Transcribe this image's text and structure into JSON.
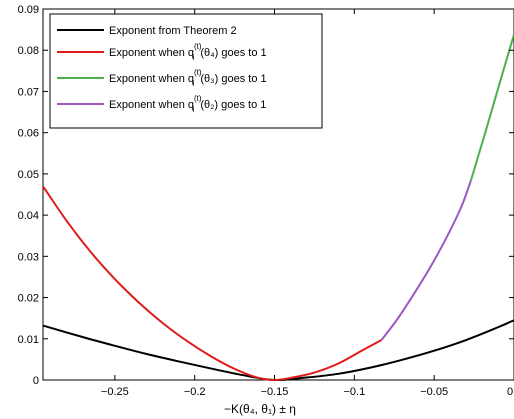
{
  "chart_data": {
    "type": "line",
    "xlabel": "−K(θ₄, θ₁) ± η",
    "xlim": [
      -0.295,
      0
    ],
    "ylim": [
      0,
      0.09
    ],
    "x_ticks": [
      -0.25,
      -0.2,
      -0.15,
      -0.1,
      -0.05,
      0
    ],
    "x_tick_labels": [
      "−0.25",
      "−0.2",
      "−0.15",
      "−0.1",
      "−0.05",
      "0"
    ],
    "y_ticks": [
      0,
      0.01,
      0.02,
      0.03,
      0.04,
      0.05,
      0.06,
      0.07,
      0.08,
      0.09
    ],
    "y_tick_labels": [
      "0",
      "0.01",
      "0.02",
      "0.03",
      "0.04",
      "0.05",
      "0.06",
      "0.07",
      "0.08",
      "0.09"
    ],
    "grid": false,
    "legend_position": "top-left",
    "series": [
      {
        "name": "Exponent from Theorem 2",
        "color": "#000000",
        "x": [
          -0.295,
          -0.27,
          -0.25,
          -0.23,
          -0.21,
          -0.19,
          -0.17,
          -0.15,
          -0.13,
          -0.11,
          -0.09,
          -0.07,
          -0.05,
          -0.03,
          -0.01,
          0
        ],
        "y": [
          0.0132,
          0.0104,
          0.0083,
          0.0063,
          0.0045,
          0.0028,
          0.0012,
          0.0,
          0.0006,
          0.0015,
          0.003,
          0.0049,
          0.0071,
          0.0097,
          0.0128,
          0.0145
        ]
      },
      {
        "name": "Exponent when q_i^(t)(θ₄) goes to 1",
        "color": "#e01b1b",
        "x": [
          -0.295,
          -0.28,
          -0.265,
          -0.25,
          -0.235,
          -0.22,
          -0.205,
          -0.19,
          -0.175,
          -0.16,
          -0.15,
          -0.14,
          -0.125,
          -0.11,
          -0.095,
          -0.083
        ],
        "y": [
          0.047,
          0.0385,
          0.031,
          0.0245,
          0.0188,
          0.0138,
          0.0095,
          0.0058,
          0.0027,
          0.0005,
          0.0,
          0.0005,
          0.0018,
          0.004,
          0.0072,
          0.0097
        ]
      },
      {
        "name": "Exponent when q_i^(t)(θ₃) goes to 1",
        "color": "#4cb04c",
        "x": [
          -0.027,
          -0.018,
          -0.009,
          0
        ],
        "y": [
          0.0484,
          0.06,
          0.072,
          0.0838
        ]
      },
      {
        "name": "Exponent when q_i^(t)(θ₂) goes to 1",
        "color": "#9b59c2",
        "x": [
          -0.083,
          -0.073,
          -0.063,
          -0.053,
          -0.043,
          -0.033,
          -0.027
        ],
        "y": [
          0.0097,
          0.0148,
          0.0207,
          0.027,
          0.034,
          0.042,
          0.0484
        ]
      }
    ]
  },
  "legend": [
    {
      "prefix": "Exponent from Theorem 2",
      "sub": "",
      "theta": "",
      "suffix": "",
      "color": "#000000"
    },
    {
      "prefix": "Exponent when q",
      "sub": "i",
      "sup": "(t)",
      "theta": "(θ₄)",
      "suffix": " goes to 1",
      "color": "#e01b1b"
    },
    {
      "prefix": "Exponent when q",
      "sub": "i",
      "sup": "(t)",
      "theta": "(θ₃)",
      "suffix": " goes to 1",
      "color": "#4cb04c"
    },
    {
      "prefix": "Exponent when q",
      "sub": "i",
      "sup": "(t)",
      "theta": "(θ₂)",
      "suffix": " goes to 1",
      "color": "#9b59c2"
    }
  ]
}
